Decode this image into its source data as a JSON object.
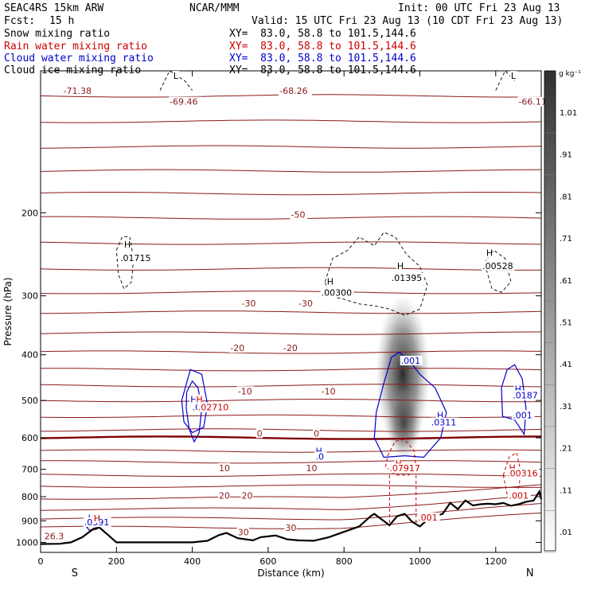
{
  "header": {
    "model": "SEAC4RS 15km ARW",
    "org": "NCAR/MMM",
    "init": "Init: 00 UTC Fri 23 Aug 13",
    "fcst_label": "Fcst:",
    "fcst_value": "15 h",
    "valid": "Valid: 15 UTC Fri 23 Aug 13 (10 CDT Fri 23 Aug 13)",
    "fields": [
      {
        "name": "Snow mixing ratio",
        "xy": "XY=  83.0, 58.8 to 101.5,144.6",
        "color": "#000000"
      },
      {
        "name": "Rain water mixing ratio",
        "xy": "XY=  83.0, 58.8 to 101.5,144.6",
        "color": "#cc0000"
      },
      {
        "name": "Cloud water mixing ratio",
        "xy": "XY=  83.0, 58.8 to 101.5,144.6",
        "color": "#0000cc"
      },
      {
        "name": "Cloud ice mixing ratio",
        "xy": "XY=  83.0, 58.8 to 101.5,144.6",
        "color": "#000000"
      }
    ]
  },
  "chart_data": {
    "type": "contour-cross-section",
    "xlabel": "Distance (km)",
    "ylabel": "Pressure (hPa)",
    "xlim": [
      0,
      1320
    ],
    "ylim_log_pressure": [
      100,
      1050
    ],
    "x_ticks": [
      0,
      200,
      400,
      600,
      800,
      1000,
      1200
    ],
    "y_ticks": [
      200,
      300,
      400,
      500,
      600,
      700,
      800,
      900,
      1000
    ],
    "left_end": "S",
    "right_end": "N",
    "colorbar": {
      "unit": "g kg⁻¹",
      "labels": [
        "1.01",
        ".91",
        ".81",
        ".71",
        ".61",
        ".51",
        ".41",
        ".31",
        ".21",
        ".11",
        ".01"
      ],
      "color_range": [
        "#ffffff",
        "#303030"
      ]
    },
    "temperature_contours": {
      "color": "#8b1a1a",
      "freezing_level_value": 0,
      "labels": [
        {
          "text": "-71.38",
          "x": 60,
          "p": 112
        },
        {
          "text": "-69.46",
          "x": 340,
          "p": 118
        },
        {
          "text": "-68.26",
          "x": 630,
          "p": 112
        },
        {
          "text": "-66.11",
          "x": 1260,
          "p": 118
        },
        {
          "text": "-50",
          "x": 660,
          "p": 205
        },
        {
          "text": "-30",
          "x": 530,
          "p": 316
        },
        {
          "text": "-30",
          "x": 680,
          "p": 316
        },
        {
          "text": "-20",
          "x": 500,
          "p": 393
        },
        {
          "text": "-20",
          "x": 640,
          "p": 393
        },
        {
          "text": "-10",
          "x": 520,
          "p": 485
        },
        {
          "text": "-10",
          "x": 740,
          "p": 485
        },
        {
          "text": "0",
          "x": 570,
          "p": 596
        },
        {
          "text": "0",
          "x": 720,
          "p": 596
        },
        {
          "text": "10",
          "x": 470,
          "p": 706
        },
        {
          "text": "10",
          "x": 700,
          "p": 706
        },
        {
          "text": "20",
          "x": 470,
          "p": 808
        },
        {
          "text": "20",
          "x": 530,
          "p": 808
        },
        {
          "text": "30",
          "x": 520,
          "p": 965
        },
        {
          "text": "30",
          "x": 645,
          "p": 945
        },
        {
          "text": "26.3",
          "x": 10,
          "p": 985
        }
      ]
    },
    "cloud_water_labels": [
      {
        "text": "H",
        "x": 395,
        "p": 505
      },
      {
        "text": ".02710",
        "x": 400,
        "p": 525
      },
      {
        "text": "H",
        "x": 725,
        "p": 650
      },
      {
        "text": ".0",
        "x": 725,
        "p": 668
      },
      {
        "text": ".001",
        "x": 950,
        "p": 418
      },
      {
        "text": "H",
        "x": 1045,
        "p": 545
      },
      {
        "text": ".0311",
        "x": 1030,
        "p": 565
      },
      {
        "text": "H",
        "x": 1250,
        "p": 480
      },
      {
        "text": ".0187",
        "x": 1245,
        "p": 495
      },
      {
        "text": ".001",
        "x": 1245,
        "p": 545
      },
      {
        "text": "H",
        "x": 125,
        "p": 901
      },
      {
        "text": ".0391",
        "x": 115,
        "p": 920
      }
    ],
    "rain_water_labels": [
      {
        "text": "H",
        "x": 410,
        "p": 505
      },
      {
        "text": ".02710",
        "x": 415,
        "p": 525
      },
      {
        "text": "H",
        "x": 935,
        "p": 690
      },
      {
        "text": ".07917",
        "x": 920,
        "p": 707
      },
      {
        "text": "H",
        "x": 1235,
        "p": 705
      },
      {
        "text": ".00316",
        "x": 1230,
        "p": 725
      },
      {
        "text": ".001",
        "x": 1235,
        "p": 808
      },
      {
        "text": ".001",
        "x": 995,
        "p": 898
      },
      {
        "text": "H",
        "x": 140,
        "p": 903
      }
    ],
    "snow_ice_labels": [
      {
        "text": "H",
        "x": 220,
        "p": 237
      },
      {
        "text": ".01715",
        "x": 210,
        "p": 253
      },
      {
        "text": "H",
        "x": 940,
        "p": 263
      },
      {
        "text": ".01395",
        "x": 925,
        "p": 279
      },
      {
        "text": "H",
        "x": 755,
        "p": 284
      },
      {
        "text": ".00300",
        "x": 740,
        "p": 300
      },
      {
        "text": "H",
        "x": 1175,
        "p": 247
      },
      {
        "text": ".00528",
        "x": 1165,
        "p": 263
      },
      {
        "text": "L",
        "x": 350,
        "p": 104
      },
      {
        "text": "L",
        "x": 1240,
        "p": 104
      }
    ],
    "terrain": [
      [
        0,
        1008
      ],
      [
        50,
        1007
      ],
      [
        80,
        1000
      ],
      [
        110,
        975
      ],
      [
        140,
        935
      ],
      [
        155,
        930
      ],
      [
        175,
        960
      ],
      [
        200,
        1000
      ],
      [
        250,
        1000
      ],
      [
        300,
        1000
      ],
      [
        400,
        1000
      ],
      [
        440,
        992
      ],
      [
        470,
        965
      ],
      [
        490,
        955
      ],
      [
        520,
        980
      ],
      [
        560,
        990
      ],
      [
        580,
        975
      ],
      [
        620,
        967
      ],
      [
        650,
        985
      ],
      [
        680,
        990
      ],
      [
        720,
        992
      ],
      [
        760,
        975
      ],
      [
        800,
        950
      ],
      [
        840,
        925
      ],
      [
        870,
        880
      ],
      [
        880,
        870
      ],
      [
        900,
        895
      ],
      [
        920,
        920
      ],
      [
        940,
        880
      ],
      [
        960,
        870
      ],
      [
        980,
        905
      ],
      [
        1000,
        925
      ],
      [
        1020,
        895
      ],
      [
        1040,
        880
      ],
      [
        1060,
        870
      ],
      [
        1080,
        825
      ],
      [
        1100,
        850
      ],
      [
        1120,
        815
      ],
      [
        1140,
        835
      ],
      [
        1160,
        830
      ],
      [
        1180,
        828
      ],
      [
        1200,
        830
      ],
      [
        1220,
        825
      ],
      [
        1240,
        836
      ],
      [
        1260,
        830
      ],
      [
        1280,
        820
      ],
      [
        1300,
        815
      ],
      [
        1315,
        780
      ],
      [
        1320,
        810
      ]
    ]
  }
}
